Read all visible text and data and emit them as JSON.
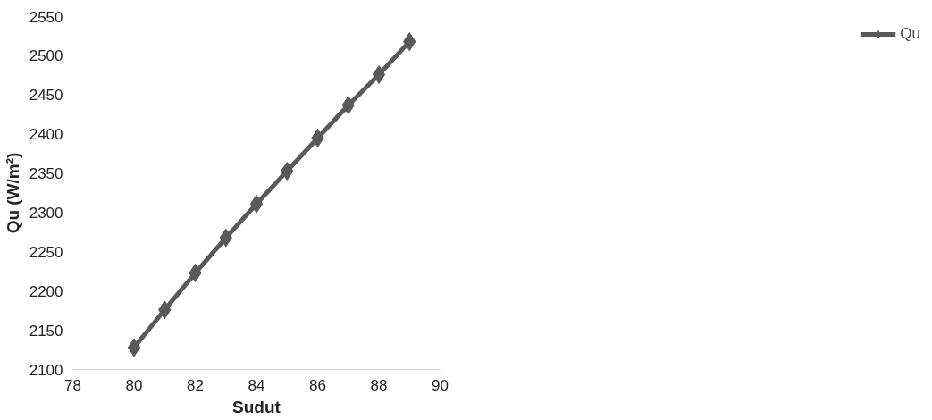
{
  "chart_data": {
    "type": "line",
    "xlabel": "Sudut",
    "ylabel": "Qu (W/m²)",
    "x": [
      80,
      81,
      82,
      83,
      84,
      85,
      86,
      87,
      88,
      89
    ],
    "series": [
      {
        "name": "Qu",
        "color": "#595959",
        "values": [
          2128,
          2176,
          2223,
          2268,
          2311,
          2353,
          2395,
          2437,
          2476,
          2518
        ]
      }
    ],
    "xlim": [
      78,
      90
    ],
    "xticks": [
      78,
      80,
      82,
      84,
      86,
      88,
      90
    ],
    "ylim": [
      2100,
      2550
    ],
    "yticks": [
      2100,
      2150,
      2200,
      2250,
      2300,
      2350,
      2400,
      2450,
      2500,
      2550
    ],
    "grid": false,
    "legend": "right",
    "marker": "diamond",
    "line_style": "solid"
  }
}
